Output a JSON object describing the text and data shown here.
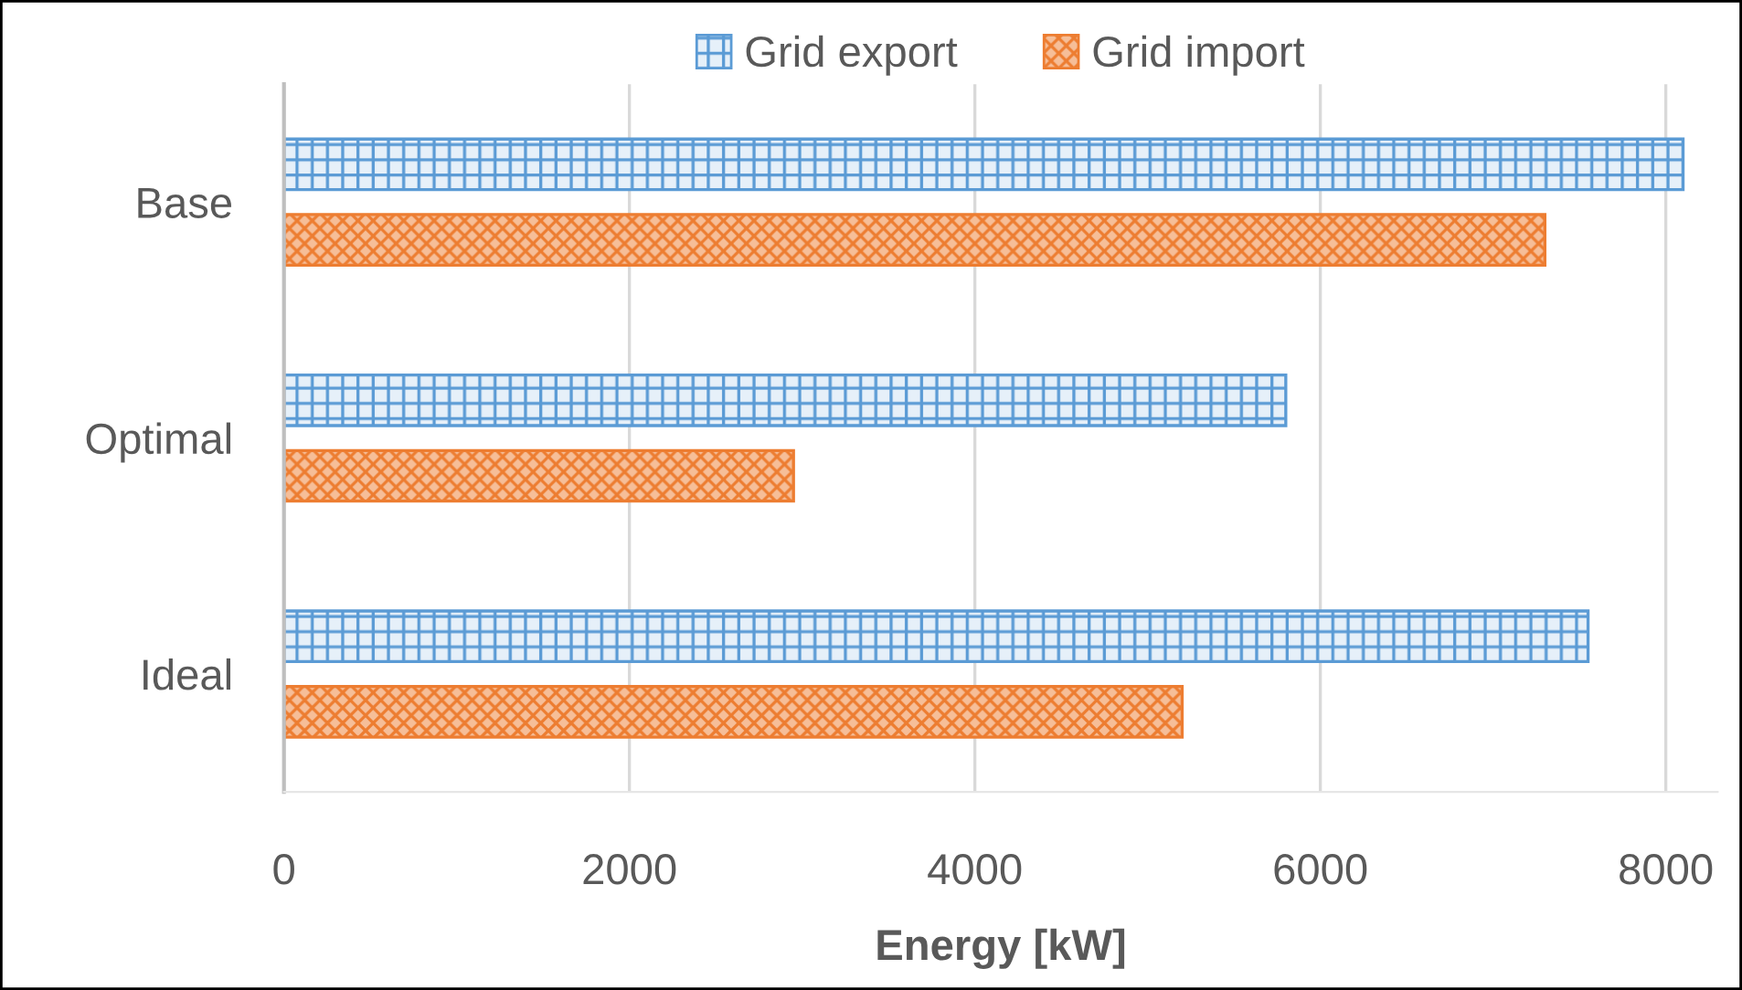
{
  "chart_data": {
    "type": "bar",
    "orientation": "horizontal",
    "categories": [
      "Base",
      "Optimal",
      "Ideal"
    ],
    "series": [
      {
        "name": "Grid export",
        "color": "#5b9bd5",
        "values": [
          8100,
          5800,
          7550
        ]
      },
      {
        "name": "Grid import",
        "color": "#ed7d31",
        "values": [
          7300,
          2950,
          5200
        ]
      }
    ],
    "xlabel": "Energy [kW]",
    "xlim": [
      0,
      8300
    ],
    "xticks": [
      0,
      2000,
      4000,
      6000,
      8000
    ],
    "grid": "x",
    "legend": "top"
  }
}
